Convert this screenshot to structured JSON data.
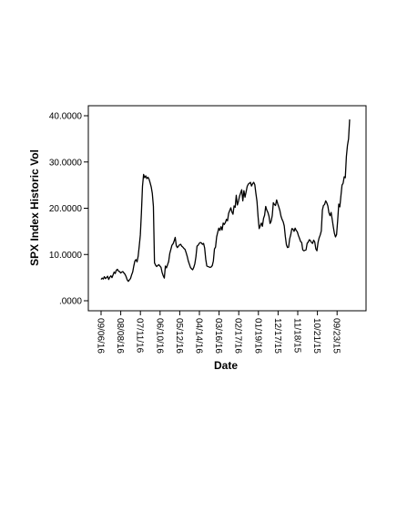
{
  "chart_data": {
    "type": "line",
    "xlabel": "Date",
    "ylabel": "SPX Index Historic Vol",
    "ylim": [
      -2,
      43
    ],
    "y_ticks": [
      0,
      10,
      20,
      30,
      40
    ],
    "y_tick_labels": [
      ".0000",
      "10.0000",
      "20.0000",
      "30.0000",
      "40.0000"
    ],
    "x_tick_labels": [
      "09/06/16",
      "08/08/16",
      "07/11/16",
      "06/10/16",
      "05/12/16",
      "04/14/16",
      "03/16/16",
      "02/17/16",
      "01/19/16",
      "12/17/15",
      "11/18/15",
      "10/21/15",
      "09/23/15"
    ],
    "x_order": "newest-to-oldest",
    "grid": false,
    "legend": "none",
    "series": [
      {
        "color": "#000000",
        "values": [
          4.6,
          4.9,
          4.7,
          5.2,
          4.8,
          5.0,
          5.3,
          4.6,
          5.1,
          5.4,
          5.0,
          5.6,
          6.2,
          5.9,
          6.6,
          6.8,
          6.4,
          6.3,
          6.0,
          6.2,
          6.3,
          6.0,
          5.7,
          5.2,
          4.5,
          4.2,
          4.5,
          4.8,
          5.6,
          6.2,
          7.5,
          8.6,
          8.9,
          8.4,
          9.6,
          11.8,
          14.2,
          19.0,
          24.8,
          27.3,
          26.6,
          27.0,
          26.4,
          26.7,
          26.3,
          25.5,
          24.6,
          23.2,
          20.4,
          8.2,
          7.7,
          7.4,
          7.6,
          7.8,
          7.5,
          7.2,
          6.1,
          5.4,
          4.9,
          7.5,
          7.1,
          7.8,
          8.5,
          10.2,
          11.1,
          12.0,
          12.3,
          12.9,
          13.7,
          11.9,
          11.5,
          11.8,
          12.1,
          12.2,
          11.8,
          11.6,
          11.3,
          11.1,
          10.4,
          9.6,
          8.6,
          7.9,
          7.2,
          6.9,
          6.7,
          7.2,
          8.0,
          9.5,
          11.8,
          12.0,
          12.4,
          12.6,
          12.5,
          12.2,
          12.4,
          11.4,
          9.0,
          7.5,
          7.4,
          7.3,
          7.2,
          7.3,
          7.6,
          8.6,
          11.2,
          11.6,
          13.8,
          14.8,
          15.7,
          15.2,
          16.0,
          15.3,
          16.8,
          16.5,
          16.9,
          17.6,
          17.3,
          18.9,
          19.5,
          20.1,
          19.2,
          18.7,
          20.5,
          20.2,
          22.8,
          20.7,
          21.5,
          22.6,
          23.3,
          24.0,
          21.6,
          23.8,
          22.4,
          23.5,
          24.7,
          25.2,
          25.4,
          25.6,
          24.8,
          25.3,
          25.6,
          25.1,
          23.2,
          21.5,
          18.2,
          15.6,
          16.2,
          16.8,
          16.1,
          17.8,
          18.5,
          20.4,
          19.6,
          19.1,
          18.3,
          16.7,
          17.2,
          18.4,
          21.2,
          20.8,
          20.6,
          21.8,
          21.0,
          20.3,
          19.5,
          18.3,
          17.6,
          17.1,
          16.2,
          13.9,
          12.1,
          11.5,
          11.6,
          13.4,
          14.3,
          15.6,
          15.5,
          15.0,
          15.7,
          15.2,
          14.9,
          14.1,
          13.5,
          12.8,
          12.6,
          11.0,
          10.8,
          10.9,
          11.0,
          12.4,
          12.7,
          13.2,
          13.0,
          12.6,
          12.4,
          13.1,
          12.7,
          11.2,
          10.8,
          12.6,
          13.6,
          14.2,
          15.1,
          19.6,
          20.6,
          20.8,
          21.6,
          21.2,
          20.5,
          19.0,
          18.4,
          19.1,
          17.6,
          16.0,
          14.6,
          13.8,
          14.3,
          17.3,
          20.9,
          20.3,
          22.7,
          25.0,
          25.4,
          26.8,
          26.6,
          31.2,
          33.6,
          35.0,
          39.2
        ]
      }
    ]
  }
}
